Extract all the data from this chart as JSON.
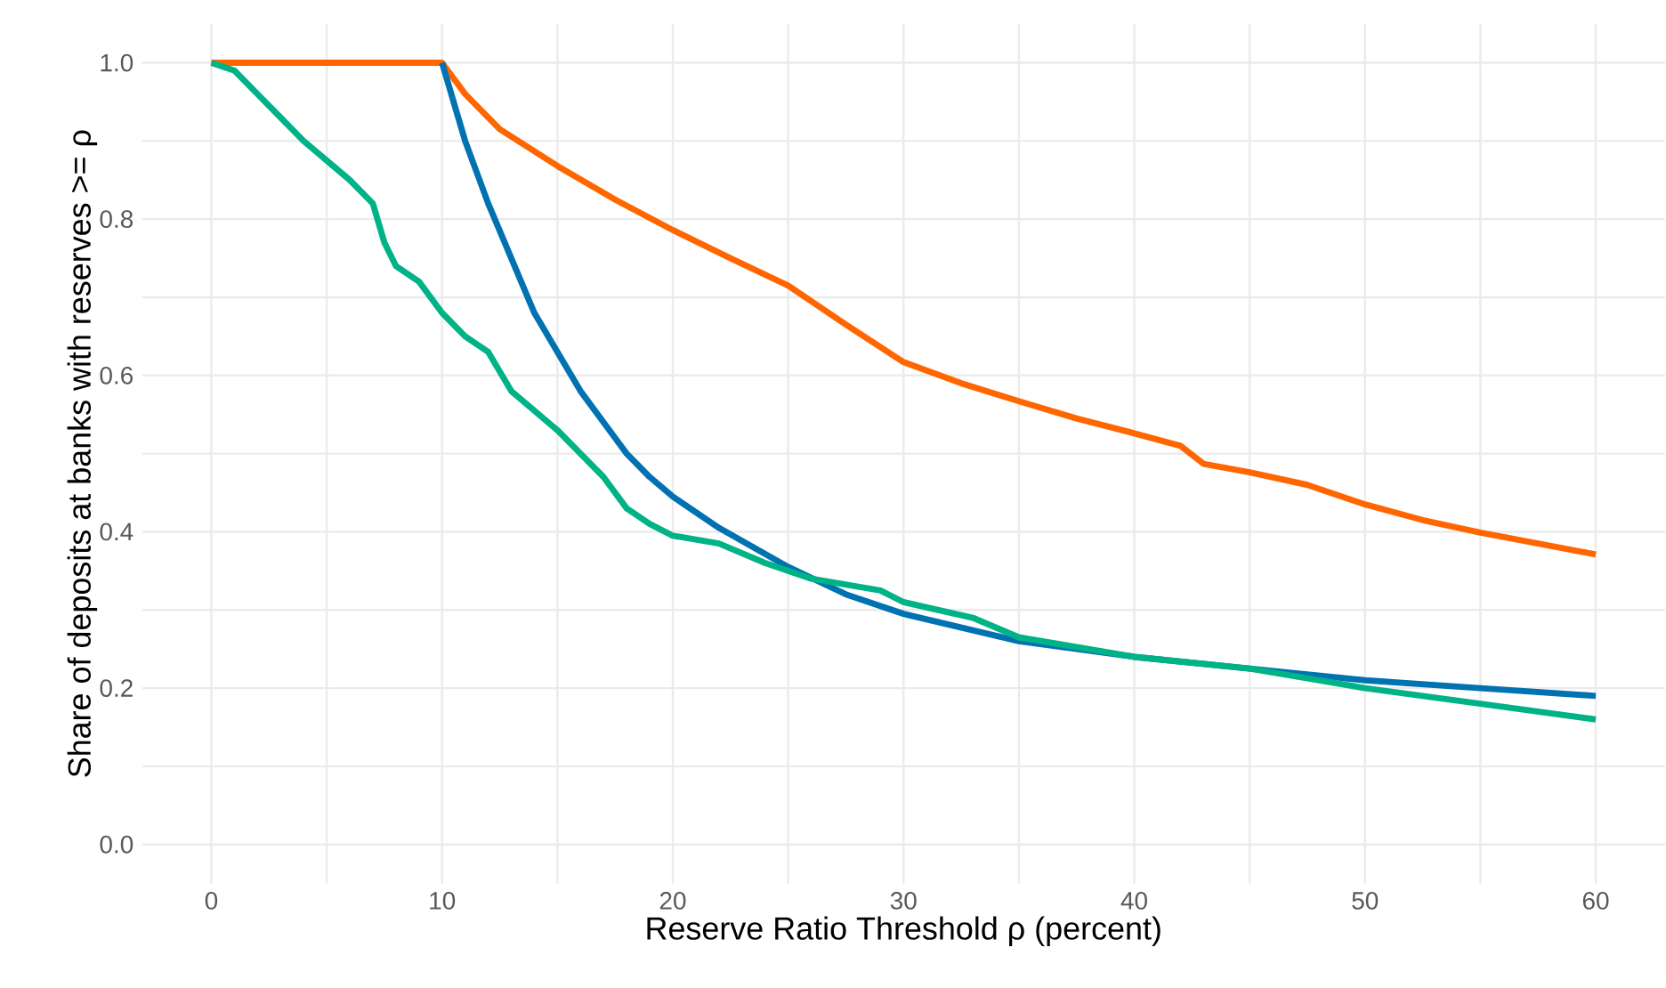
{
  "chart_data": {
    "type": "line",
    "xlabel": "Reserve Ratio Threshold ρ (percent)",
    "ylabel": "Share of deposits at banks with reserves >= ρ",
    "xlim": [
      -3,
      63
    ],
    "ylim": [
      -0.05,
      1.05
    ],
    "xticks": [
      0,
      {
        "value": 5,
        "label": null
      },
      10,
      {
        "value": 15,
        "label": null
      },
      20,
      {
        "value": 25,
        "label": null
      },
      30,
      {
        "value": 35,
        "label": null
      },
      40,
      {
        "value": 45,
        "label": null
      },
      50,
      {
        "value": 55,
        "label": null
      },
      60
    ],
    "yticks": [
      {
        "value": 0,
        "label": "0.0"
      },
      {
        "value": 0.1,
        "label": null
      },
      {
        "value": 0.2,
        "label": "0.2"
      },
      {
        "value": 0.3,
        "label": null
      },
      {
        "value": 0.4,
        "label": "0.4"
      },
      {
        "value": 0.5,
        "label": null
      },
      {
        "value": 0.6,
        "label": "0.6"
      },
      {
        "value": 0.7,
        "label": null
      },
      {
        "value": 0.8,
        "label": "0.8"
      },
      {
        "value": 0.9,
        "label": null
      },
      {
        "value": 1.0,
        "label": "1.0"
      }
    ],
    "grid": true,
    "series": [
      {
        "color": "#ff6600",
        "x": [
          0,
          10,
          11,
          12.5,
          15,
          17.5,
          20,
          22.5,
          25,
          27.5,
          30,
          32.5,
          35,
          37.5,
          40,
          42,
          43,
          45,
          47.5,
          50,
          52.5,
          55,
          57.5,
          60
        ],
        "values": [
          1.0,
          1.0,
          0.96,
          0.915,
          0.868,
          0.825,
          0.786,
          0.75,
          0.715,
          0.665,
          0.617,
          0.59,
          0.567,
          0.545,
          0.526,
          0.51,
          0.487,
          0.476,
          0.46,
          0.435,
          0.415,
          0.399,
          0.385,
          0.371
        ]
      },
      {
        "color": "#0072b2",
        "x": [
          10,
          11,
          12,
          13,
          14,
          15,
          16,
          17,
          18,
          19,
          20,
          22,
          25,
          27.5,
          30,
          35,
          40,
          45,
          50,
          55,
          60
        ],
        "values": [
          1.0,
          0.9,
          0.82,
          0.75,
          0.68,
          0.63,
          0.58,
          0.54,
          0.5,
          0.47,
          0.445,
          0.405,
          0.355,
          0.32,
          0.295,
          0.26,
          0.24,
          0.225,
          0.21,
          0.2,
          0.19
        ]
      },
      {
        "color": "#00b386",
        "x": [
          0,
          1,
          2,
          3,
          4,
          5,
          6,
          7,
          7.5,
          8,
          9,
          10,
          11,
          12,
          13,
          14,
          15,
          16,
          17,
          18,
          19,
          20,
          22,
          24,
          26,
          28,
          29,
          30,
          33,
          35,
          40,
          45,
          47,
          50,
          55,
          60
        ],
        "values": [
          1.0,
          0.99,
          0.96,
          0.93,
          0.9,
          0.875,
          0.85,
          0.82,
          0.77,
          0.74,
          0.72,
          0.68,
          0.65,
          0.63,
          0.58,
          0.555,
          0.53,
          0.5,
          0.47,
          0.43,
          0.41,
          0.395,
          0.385,
          0.36,
          0.34,
          0.33,
          0.325,
          0.31,
          0.29,
          0.265,
          0.24,
          0.225,
          0.215,
          0.2,
          0.18,
          0.16
        ]
      }
    ]
  }
}
